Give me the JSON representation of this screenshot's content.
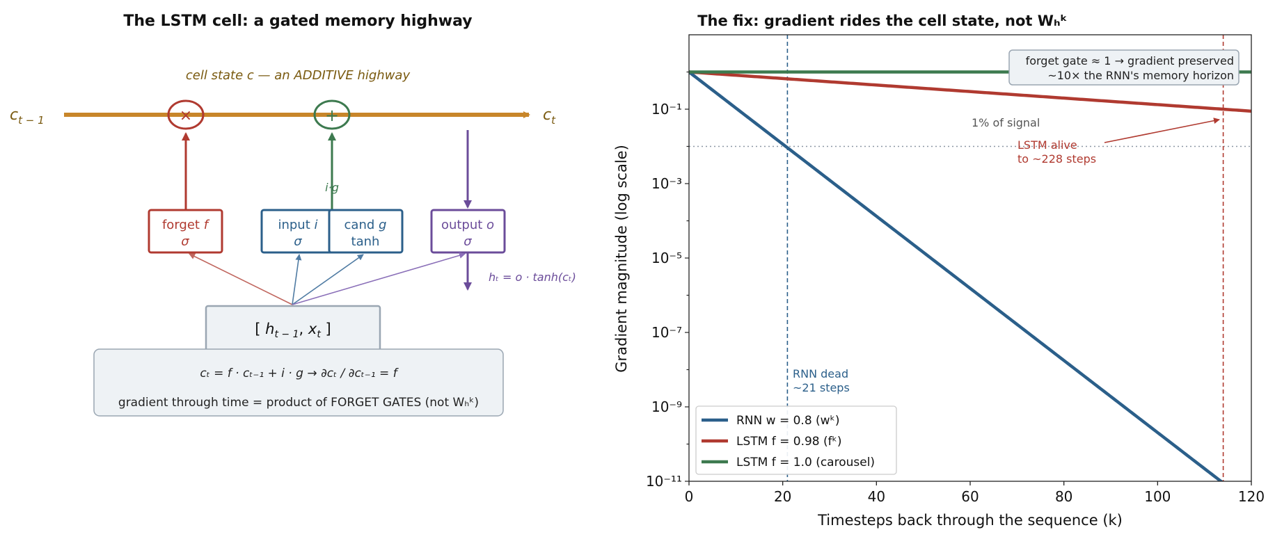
{
  "left_panel": {
    "title": "The LSTM cell: a gated memory highway",
    "cell_state_label": "cell state c — an ADDITIVE highway",
    "c_prev": {
      "base": "c",
      "sub": "t − 1"
    },
    "c_next": {
      "base": "c",
      "sub": "t"
    },
    "multiply_symbol": "×",
    "add_symbol": "+",
    "ig_label": "i·g",
    "gates": [
      {
        "name": "forget",
        "line1": "forget ",
        "var": "f",
        "line2": "σ",
        "color": "#b03a30"
      },
      {
        "name": "input",
        "line1": "input ",
        "var": "i",
        "line2": "σ",
        "color": "#2b5f8a"
      },
      {
        "name": "candidate",
        "line1": "cand ",
        "var": "g",
        "line2": "tanh",
        "color": "#2b5f8a"
      },
      {
        "name": "output",
        "line1": "output ",
        "var": "o",
        "line2": "σ",
        "color": "#6b4c9a"
      }
    ],
    "ht_label": "hₜ = o · tanh(cₜ)",
    "input_box": {
      "open": "[ ",
      "h": "h",
      "h_sub": "t − 1",
      "sep": ",  ",
      "x": "x",
      "x_sub": "t",
      "close": " ]"
    },
    "equation": "cₜ = f · cₜ₋₁ + i · g  →  ∂cₜ / ∂cₜ₋₁ = f",
    "eq_line2": "gradient through time = product of FORGET GATES (not Wₕᵏ)"
  },
  "right_panel": {
    "title": "The fix: gradient rides the cell state, not Wₕᵏ",
    "xlabel": "Timesteps back through the sequence (k)",
    "ylabel": "Gradient magnitude (log scale)",
    "threshold_label": "1% of signal",
    "rnn_annotation": [
      "RNN dead",
      "~21 steps"
    ],
    "lstm_annotation": [
      "LSTM alive",
      "to ~228 steps"
    ],
    "callout": [
      "forget gate ≈ 1 → gradient preserved",
      "~10× the RNN's memory horizon"
    ]
  },
  "chart_data": {
    "type": "line",
    "xlim": [
      0,
      120
    ],
    "ylim": [
      1e-11,
      10
    ],
    "y_scale": "log",
    "x_ticks": [
      0,
      20,
      40,
      60,
      80,
      100,
      120
    ],
    "y_ticks": [
      {
        "exp": -1,
        "label": "10⁻¹"
      },
      {
        "exp": -3,
        "label": "10⁻³"
      },
      {
        "exp": -5,
        "label": "10⁻⁵"
      },
      {
        "exp": -7,
        "label": "10⁻⁷"
      },
      {
        "exp": -9,
        "label": "10⁻⁹"
      },
      {
        "exp": -11,
        "label": "10⁻¹¹"
      }
    ],
    "threshold": 0.01,
    "rnn_dead_k": 21,
    "lstm_alive_k": 114,
    "series": [
      {
        "name": "RNN  w = 0.8  (wᵏ)",
        "base": 0.8,
        "color": "#2b5f8a"
      },
      {
        "name": "LSTM  f = 0.98  (fᵏ)",
        "base": 0.98,
        "color": "#b03a30"
      },
      {
        "name": "LSTM  f = 1.0  (carousel)",
        "base": 1.0,
        "color": "#3d7a4f"
      }
    ],
    "legend_position": "lower-left"
  }
}
